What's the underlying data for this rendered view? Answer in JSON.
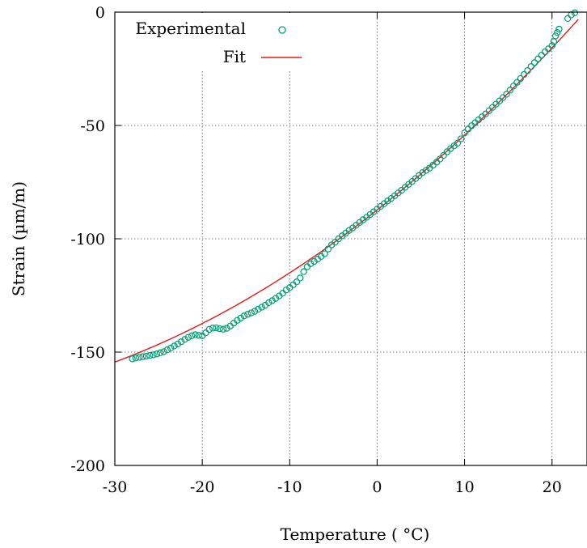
{
  "chart_data": {
    "type": "scatter",
    "xlabel": "Temperature ( °C)",
    "ylabel": "Strain (µm/m)",
    "xlim": [
      -30,
      24
    ],
    "ylim": [
      -200,
      0
    ],
    "xticks": [
      -30,
      -20,
      -10,
      0,
      10,
      20
    ],
    "yticks": [
      0,
      -50,
      -100,
      -150,
      -200
    ],
    "grid": true,
    "legend_position": "top-left",
    "series": [
      {
        "name": "Experimental",
        "marker": "circle-open",
        "color": "#009e73",
        "points": [
          [
            -28.0,
            -153.0
          ],
          [
            -27.6,
            -152.6
          ],
          [
            -27.2,
            -152.3
          ],
          [
            -26.8,
            -152.0
          ],
          [
            -26.4,
            -151.8
          ],
          [
            -26.0,
            -151.5
          ],
          [
            -25.6,
            -151.2
          ],
          [
            -25.2,
            -150.8
          ],
          [
            -24.8,
            -150.3
          ],
          [
            -24.4,
            -149.8
          ],
          [
            -24.0,
            -149.0
          ],
          [
            -23.6,
            -148.2
          ],
          [
            -23.2,
            -147.3
          ],
          [
            -22.8,
            -146.4
          ],
          [
            -22.4,
            -145.4
          ],
          [
            -22.0,
            -144.4
          ],
          [
            -21.6,
            -143.5
          ],
          [
            -21.2,
            -142.8
          ],
          [
            -20.8,
            -142.3
          ],
          [
            -20.4,
            -142.6
          ],
          [
            -20.0,
            -142.8
          ],
          [
            -19.6,
            -141.5
          ],
          [
            -19.2,
            -140.0
          ],
          [
            -18.8,
            -139.4
          ],
          [
            -18.4,
            -139.3
          ],
          [
            -18.0,
            -139.7
          ],
          [
            -17.6,
            -139.9
          ],
          [
            -17.2,
            -139.5
          ],
          [
            -16.8,
            -138.5
          ],
          [
            -16.4,
            -137.2
          ],
          [
            -16.0,
            -136.0
          ],
          [
            -15.6,
            -135.0
          ],
          [
            -15.2,
            -134.0
          ],
          [
            -14.8,
            -133.3
          ],
          [
            -14.4,
            -132.7
          ],
          [
            -14.0,
            -132.0
          ],
          [
            -13.6,
            -131.1
          ],
          [
            -13.2,
            -130.2
          ],
          [
            -12.8,
            -129.3
          ],
          [
            -12.4,
            -128.2
          ],
          [
            -12.0,
            -127.3
          ],
          [
            -11.6,
            -126.3
          ],
          [
            -11.2,
            -125.2
          ],
          [
            -10.8,
            -124.0
          ],
          [
            -10.4,
            -122.6
          ],
          [
            -10.0,
            -121.5
          ],
          [
            -9.6,
            -120.3
          ],
          [
            -9.2,
            -119.0
          ],
          [
            -8.8,
            -117.3
          ],
          [
            -8.4,
            -114.5
          ],
          [
            -8.0,
            -112.3
          ],
          [
            -7.6,
            -111.0
          ],
          [
            -7.2,
            -110.0
          ],
          [
            -6.8,
            -109.0
          ],
          [
            -6.4,
            -107.8
          ],
          [
            -6.0,
            -106.6
          ],
          [
            -5.6,
            -104.5
          ],
          [
            -5.2,
            -102.7
          ],
          [
            -4.8,
            -101.5
          ],
          [
            -4.4,
            -100.0
          ],
          [
            -4.0,
            -98.7
          ],
          [
            -3.6,
            -97.5
          ],
          [
            -3.2,
            -96.3
          ],
          [
            -2.8,
            -95.2
          ],
          [
            -2.4,
            -94.0
          ],
          [
            -2.0,
            -92.8
          ],
          [
            -1.6,
            -91.6
          ],
          [
            -1.2,
            -90.5
          ],
          [
            -0.8,
            -89.3
          ],
          [
            -0.4,
            -88.1
          ],
          [
            0.0,
            -86.9
          ],
          [
            0.4,
            -85.7
          ],
          [
            0.8,
            -84.5
          ],
          [
            1.2,
            -83.3
          ],
          [
            1.6,
            -82.2
          ],
          [
            2.0,
            -81.0
          ],
          [
            2.4,
            -79.8
          ],
          [
            2.8,
            -78.6
          ],
          [
            3.2,
            -77.3
          ],
          [
            3.6,
            -76.0
          ],
          [
            4.0,
            -74.7
          ],
          [
            4.4,
            -73.4
          ],
          [
            4.8,
            -72.1
          ],
          [
            5.2,
            -70.8
          ],
          [
            5.6,
            -69.8
          ],
          [
            6.0,
            -68.8
          ],
          [
            6.4,
            -67.5
          ],
          [
            6.8,
            -66.2
          ],
          [
            7.2,
            -64.8
          ],
          [
            7.6,
            -63.2
          ],
          [
            8.0,
            -61.6
          ],
          [
            8.4,
            -60.2
          ],
          [
            8.8,
            -59.0
          ],
          [
            9.2,
            -57.8
          ],
          [
            9.6,
            -55.9
          ],
          [
            10.0,
            -53.3
          ],
          [
            10.4,
            -51.6
          ],
          [
            10.8,
            -50.1
          ],
          [
            11.2,
            -48.8
          ],
          [
            11.6,
            -47.5
          ],
          [
            12.0,
            -46.2
          ],
          [
            12.4,
            -44.9
          ],
          [
            12.8,
            -43.5
          ],
          [
            13.2,
            -42.0
          ],
          [
            13.6,
            -40.6
          ],
          [
            14.0,
            -39.2
          ],
          [
            14.4,
            -37.7
          ],
          [
            14.8,
            -36.2
          ],
          [
            15.2,
            -34.4
          ],
          [
            15.6,
            -32.6
          ],
          [
            16.0,
            -31.0
          ],
          [
            16.4,
            -29.3
          ],
          [
            16.8,
            -27.5
          ],
          [
            17.2,
            -25.8
          ],
          [
            17.6,
            -24.0
          ],
          [
            18.0,
            -22.3
          ],
          [
            18.4,
            -20.6
          ],
          [
            18.8,
            -19.0
          ],
          [
            19.2,
            -17.5
          ],
          [
            19.6,
            -16.2
          ],
          [
            20.0,
            -14.8
          ],
          [
            20.2,
            -13.0
          ],
          [
            20.4,
            -10.5
          ],
          [
            20.6,
            -9.0
          ],
          [
            20.8,
            -7.5
          ],
          [
            21.8,
            -2.8
          ],
          [
            22.2,
            -1.2
          ],
          [
            22.6,
            -0.3
          ]
        ]
      },
      {
        "name": "Fit",
        "line": true,
        "color": "#e41a1c",
        "curve": {
          "a": 0.0268,
          "b": 3.04,
          "c": -87.3
        },
        "x_range": [
          -30,
          23
        ]
      }
    ]
  }
}
